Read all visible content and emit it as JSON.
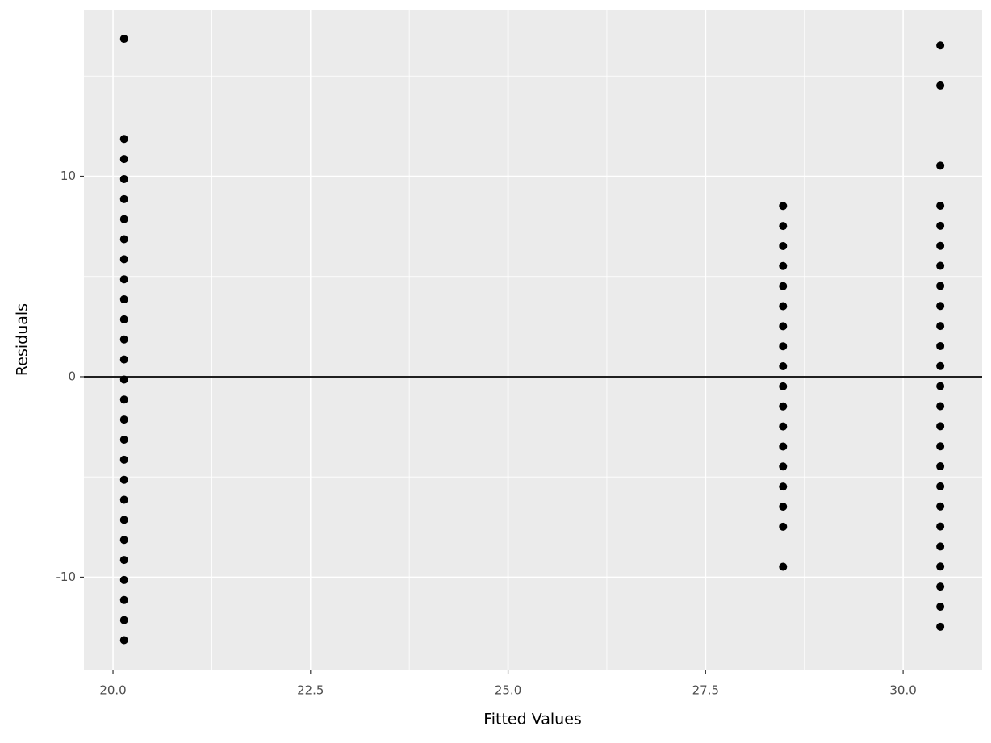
{
  "chart_data": {
    "type": "scatter",
    "xlabel": "Fitted Values",
    "ylabel": "Residuals",
    "series": [
      {
        "color": "#000000",
        "x": [
          20.14,
          20.14,
          20.14,
          20.14,
          20.14,
          20.14,
          20.14,
          20.14,
          20.14,
          20.14,
          20.14,
          20.14,
          20.14,
          20.14,
          20.14,
          20.14,
          20.14,
          20.14,
          20.14,
          20.14,
          20.14,
          20.14,
          20.14,
          20.14,
          20.14,
          20.14,
          20.14,
          28.48,
          28.48,
          28.48,
          28.48,
          28.48,
          28.48,
          28.48,
          28.48,
          28.48,
          28.48,
          28.48,
          28.48,
          28.48,
          28.48,
          28.48,
          28.48,
          28.48,
          28.48,
          30.47,
          30.47,
          30.47,
          30.47,
          30.47,
          30.47,
          30.47,
          30.47,
          30.47,
          30.47,
          30.47,
          30.47,
          30.47,
          30.47,
          30.47,
          30.47,
          30.47,
          30.47,
          30.47,
          30.47,
          30.47,
          30.47,
          30.47,
          30.47,
          30.47
        ],
        "values": [
          16.86,
          11.86,
          10.86,
          9.86,
          8.86,
          7.86,
          6.86,
          5.86,
          4.86,
          3.86,
          2.86,
          1.86,
          0.86,
          -0.14,
          -1.14,
          -2.14,
          -3.14,
          -4.14,
          -5.14,
          -6.14,
          -7.14,
          -8.14,
          -9.14,
          -10.14,
          -11.14,
          -12.14,
          -13.14,
          8.52,
          7.52,
          6.52,
          5.52,
          4.52,
          3.52,
          2.52,
          1.52,
          0.52,
          -0.48,
          -1.48,
          -2.48,
          -3.48,
          -4.48,
          -5.48,
          -6.48,
          -7.48,
          -9.48,
          16.53,
          14.53,
          10.53,
          8.53,
          7.53,
          6.53,
          5.53,
          4.53,
          3.53,
          2.53,
          1.53,
          0.53,
          -0.47,
          -1.47,
          -2.47,
          -3.47,
          -4.47,
          -5.47,
          -6.47,
          -7.47,
          -8.47,
          -9.47,
          -10.47,
          -11.47,
          -12.47
        ]
      }
    ],
    "hline": 0,
    "xlim": [
      19.632,
      31.0
    ],
    "ylim": [
      -14.61,
      18.31
    ],
    "xticks": [
      {
        "value": 20,
        "label": "20.0"
      },
      {
        "value": 22.5,
        "label": "22.5"
      },
      {
        "value": 25,
        "label": "25.0"
      },
      {
        "value": 27.5,
        "label": "27.5"
      },
      {
        "value": 30,
        "label": "30.0"
      }
    ],
    "yticks": [
      -10,
      0,
      10
    ],
    "grid": true
  }
}
